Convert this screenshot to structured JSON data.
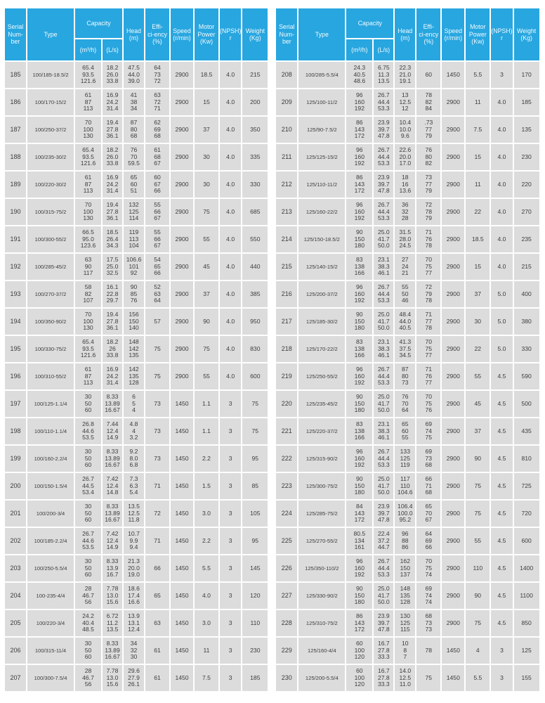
{
  "colors": {
    "header_bg": "#27a6df",
    "cell_bg": "#dcdcdc",
    "header_text": "#f2fafe",
    "body_text": "#3d3d3d",
    "page_bg": "#ffffff"
  },
  "columns": {
    "serial": "Serial\nNum-\nber",
    "type": "Type",
    "capacity": "Capacity",
    "capacity_m3h": "(m³/h)",
    "capacity_ls": "(L/s)",
    "head": "Head\n(m)",
    "efficiency": "Effi-\nci-ency\n(%)",
    "speed": "Speed\n(r/min)",
    "motor_power": "Motor\nPower\n(Kw)",
    "npshr": "(NPSH)\nr",
    "weight": "Weight\n(Kg)"
  },
  "left_table": {
    "rows": [
      [
        "185",
        "100/185-18.5/2",
        "65.4\n93.5\n121.6",
        "18.2\n26.0\n33.8",
        "47.5\n44.0\n39.0",
        "64\n73\n72",
        "2900",
        "18.5",
        "4.0",
        "215"
      ],
      [
        "186",
        "100/170-15/2",
        "61\n87\n113",
        "16.9\n24.2\n31.4",
        "41\n38\n34",
        "63\n72\n71",
        "2900",
        "15",
        "4.0",
        "200"
      ],
      [
        "187",
        "100/250-37/2",
        "70\n100\n130",
        "19.4\n27.8\n36.1",
        "87\n80\n68",
        "62\n69\n68",
        "2900",
        "37",
        "4.0",
        "350"
      ],
      [
        "188",
        "100/235-30/2",
        "65.4\n93.5\n121.6",
        "18.2\n26.0\n33.8",
        "76\n70\n59.5",
        "61\n68\n67",
        "2900",
        "30",
        "4.0",
        "335"
      ],
      [
        "189",
        "100/220-30/2",
        "61\n87\n113",
        "16.9\n24.2\n31.4",
        "65\n60\n51",
        "60\n67\n66",
        "2900",
        "30",
        "4.0",
        "330"
      ],
      [
        "190",
        "100/315-75/2",
        "70\n100\n130",
        "19.4\n27.8\n36.1",
        "132\n125\n114",
        "55\n66\n67",
        "2900",
        "75",
        "4.0",
        "685"
      ],
      [
        "191",
        "100/300-55/2",
        "66.5\n95.0\n123.6",
        "18.5\n26.4\n34.3",
        "119\n113\n104",
        "55\n66\n67",
        "2900",
        "55",
        "4.0",
        "550"
      ],
      [
        "192",
        "100/285-45/2",
        "63\n90\n117",
        "17.5\n25.0\n32.5",
        "106.6\n101\n92",
        "54\n65\n66",
        "2900",
        "45",
        "4.0",
        "440"
      ],
      [
        "193",
        "100/270-37/2",
        "58\n82\n107",
        "16.1\n22.8\n29.7",
        "90\n85\n76",
        "52\n63\n64",
        "2900",
        "37",
        "4.0",
        "385"
      ],
      [
        "194",
        "100/350-90/2",
        "70\n100\n130",
        "19.4\n27.8\n36.1",
        "156\n150\n140",
        "57",
        "2900",
        "90",
        "4.0",
        "950"
      ],
      [
        "195",
        "100/330-75/2",
        "65.4\n93.5\n121.6",
        "18.2\n26\n33.8",
        "148\n142\n135",
        "75",
        "2900",
        "75",
        "4.0",
        "830"
      ],
      [
        "196",
        "100/310-55/2",
        "61\n87\n113",
        "16.9\n24.2\n31.4",
        "142\n135\n128",
        "75",
        "2900",
        "55",
        "4.0",
        "600"
      ],
      [
        "197",
        "100/125-1.1/4",
        "30\n50\n60",
        "8.33\n13.89\n16.67",
        "6\n5\n4",
        "73",
        "1450",
        "1.1",
        "3",
        "75"
      ],
      [
        "198",
        "100/110-1.1/4",
        "26.8\n44.6\n53.5",
        "7.44\n12.4\n14.9",
        "4.8\n4\n3.2",
        "73",
        "1450",
        "1.1",
        "3",
        "75"
      ],
      [
        "199",
        "100/160-2.2/4",
        "30\n50\n60",
        "8.33\n13.89\n16.67",
        "9.2\n8.0\n6.8",
        "73",
        "1450",
        "2.2",
        "3",
        "95"
      ],
      [
        "200",
        "100/150-1.5/4",
        "26.7\n44.5\n53.4",
        "7.42\n12.4\n14.8",
        "7.3\n6.3\n5.4",
        "71",
        "1450",
        "1.5",
        "3",
        "85"
      ],
      [
        "201",
        "100/200-3/4",
        "30\n50\n60",
        "8.33\n13.89\n16.67",
        "13.5\n12.5\n11.8",
        "72",
        "1450",
        "3.0",
        "3",
        "105"
      ],
      [
        "202",
        "100/185-2.2/4",
        "26.7\n44.6\n53.5",
        "7.42\n12.4\n14.9",
        "10.7\n9.9\n9.4",
        "71",
        "1450",
        "2.2",
        "3",
        "95"
      ],
      [
        "203",
        "100/250-5.5/4",
        "30\n50\n60",
        "8.33\n13.9\n16.7",
        "21.3\n20.0\n19.0",
        "66",
        "1450",
        "5.5",
        "3",
        "145"
      ],
      [
        "204",
        "100-235-4/4",
        "28\n46.7\n56",
        "7.78\n13.0\n15.6",
        "18.6\n17.4\n16.6",
        "65",
        "1450",
        "4.0",
        "3",
        "120"
      ],
      [
        "205",
        "100/220-3/4",
        "24.2\n40.4\n48.5",
        "6.72\n11.2\n13.5",
        "13.9\n13.1\n12.4",
        "63",
        "1450",
        "3.0",
        "3",
        "110"
      ],
      [
        "206",
        "100/315-11/4",
        "30\n50\n60",
        "8.33\n13.89\n16.67",
        "34\n32\n30",
        "61",
        "1450",
        "11",
        "3",
        "230"
      ],
      [
        "207",
        "100/300-7.5/4",
        "28\n46.7\n56",
        "7.78\n13.0\n15.6",
        "29.6\n27.9\n26.1",
        "61",
        "1450",
        "7.5",
        "3",
        "185"
      ]
    ]
  },
  "right_table": {
    "rows": [
      [
        "208",
        "100/285-5.5/4",
        "24.3\n40.5\n48.6",
        "6.75\n11.3\n13.5",
        "22.3\n21.0\n19.1",
        "60",
        "1450",
        "5.5",
        "3",
        "170"
      ],
      [
        "209",
        "125/100-11/2",
        "96\n160\n192",
        "26.7\n44.4\n53.3",
        "13\n12.5\n12",
        "78\n82\n84",
        "2900",
        "11",
        "4.0",
        "185"
      ],
      [
        "210",
        "125/90-7.5/2",
        "86\n143\n172",
        "23.9\n39.7\n47.8",
        "10.4\n10.0\n9.6",
        ".73\n77\n79",
        "2900",
        "7.5",
        "4.0",
        "135"
      ],
      [
        "211",
        "125/125-15/2",
        "96\n160\n192",
        "26.7\n44.4\n53.3",
        "22.6\n20.0\n17.0",
        "76\n80\n82",
        "2900",
        "15",
        "4.0",
        "230"
      ],
      [
        "212",
        "125/110-11/2",
        "86\n143\n172",
        "23.9\n39.7\n47.8",
        "18\n16\n13.6",
        "73\n77\n79",
        "2900",
        "11",
        "4.0",
        "220"
      ],
      [
        "213",
        "125/160-22/2",
        "96\n160\n192",
        "26.7\n44.4\n53.3",
        "36\n32\n28",
        "72\n78\n79",
        "2900",
        "22",
        "4.0",
        "270"
      ],
      [
        "214",
        "125/150-18.5/2",
        "90\n150\n180",
        "25.0\n41.7\n50.0",
        "31.5\n28.0\n24.5",
        "71\n76\n78",
        "2900",
        "18.5",
        "4.0",
        "235"
      ],
      [
        "215",
        "125/140-15/2",
        "83\n138\n166",
        "23.1\n38.3\n46.1",
        "27\n24\n21",
        "70\n75\n77",
        "2900",
        "15",
        "4.0",
        "215"
      ],
      [
        "216",
        "125/200-37/2",
        "96\n160\n192",
        "26.7\n44.4\n53.3",
        "55\n50\n46",
        "72\n79\n78",
        "2900",
        "37",
        "5.0",
        "400"
      ],
      [
        "217",
        "125/185-30/2",
        "90\n150\n180",
        "25.0\n41.7\n50.0",
        "48.4\n44.0\n40.5",
        "71\n77\n78",
        "2900",
        "30",
        "5.0",
        "380"
      ],
      [
        "218",
        "125/170-22/2",
        "83\n138\n166",
        "23.1\n38.3\n46.1",
        "41.3\n37.5\n34.5",
        "70\n75\n77",
        "2900",
        "22",
        "5.0",
        "330"
      ],
      [
        "219",
        "125/250-55/2",
        "96\n160\n192",
        "26.7\n44.4\n53.3",
        "87\n80\n73",
        "71\n76\n77",
        "2900",
        "55",
        "4.5",
        "590"
      ],
      [
        "220",
        "125/235-45/2",
        "90\n150\n180",
        "25.0\n41.7\n50.0",
        "76\n70\n64",
        "70\n75\n76",
        "2900",
        "45",
        "4.5",
        "500"
      ],
      [
        "221",
        "125/220-37/2",
        "83\n138\n166",
        "23.1\n38.3\n46.1",
        "65\n60\n55",
        "69\n74\n75",
        "2900",
        "37",
        "4.5",
        "435"
      ],
      [
        "222",
        "125/315-90/2",
        "96\n160\n192",
        "26.7\n44.4\n53.3",
        "133\n125\n119",
        "69\n73\n68",
        "2900",
        "90",
        "4.5",
        "810"
      ],
      [
        "223",
        "125/300-75/2",
        "90\n150\n180",
        "25.0\n41.7\n50.0",
        "117\n110\n104.6",
        "66\n71\n68",
        "2900",
        "75",
        "4.5",
        "725"
      ],
      [
        "224",
        "125/285-75/2",
        "84\n143\n172",
        "23.9\n39.7\n47.8",
        "106.4\n100.0\n95.2",
        "65\n70\n67",
        "2900",
        "75",
        "4.5",
        "720"
      ],
      [
        "225",
        "125/270-55/2",
        "80.5\n134\n161",
        "22.4\n37.2\n44.7",
        "96\n88\n86",
        "64\n69\n66",
        "2900",
        "55",
        "4.5",
        "600"
      ],
      [
        "226",
        "125/350-110/2",
        "96\n160\n192",
        "26.7\n44.4\n53.3",
        "162\n150\n137",
        "70\n75\n74",
        "2900",
        "110",
        "4.5",
        "1400"
      ],
      [
        "227",
        "125/330-90/2",
        "90\n150\n180",
        "25.0\n41.7\n50.0",
        "148\n135\n128",
        "69\n74\n74",
        "2900",
        "90",
        "4.5",
        "1100"
      ],
      [
        "228",
        "125/310-75/2",
        "86\n143\n172",
        "23.9\n39.7\n47.8",
        "130\n125\n115",
        "68\n73\n73",
        "2900",
        "75",
        "4.5",
        "850"
      ],
      [
        "229",
        "125/160-4/4",
        "60\n100\n120",
        "16.7\n27.8\n33.3",
        "10\n8\n7",
        "78",
        "1450",
        "4",
        "3",
        "125"
      ],
      [
        "230",
        "125/200-5.5/4",
        "60\n100\n120",
        "16.7\n27.8\n33.3",
        "14.0\n12.5\n11.0",
        "75",
        "1450",
        "5.5",
        "3",
        "155"
      ]
    ]
  }
}
